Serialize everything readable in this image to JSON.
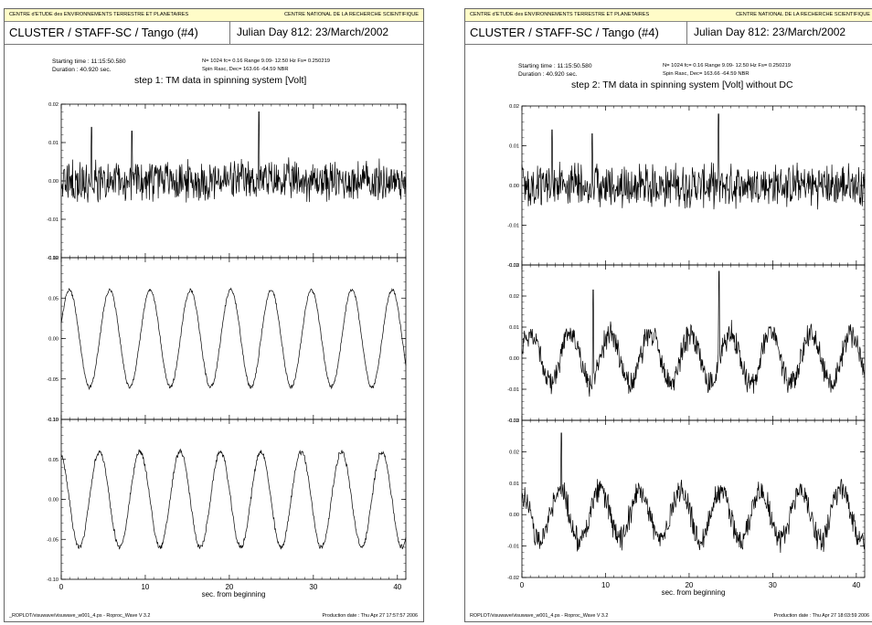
{
  "pages": [
    {
      "header_left": "CENTRE d'ETUDE des ENVIRONNEMENTS TERRESTRE ET PLANETAIRES",
      "header_right": "CENTRE NATIONAL DE LA RECHERCHE SCIENTIFIQUE",
      "title": "CLUSTER / STAFF-SC / Tango  (#4)",
      "julian": "Julian Day  812:  23/March/2002",
      "start_time": "Starting time :  11:15:50.580",
      "duration": "Duration :    40.920 sec.",
      "params1": "N=   1024  fc=  0.16  Range    9.09-   12.50 Hz  Fs= 0.250219",
      "params2": "Spin Rasc, Dec= 163.66  -64.59  NBR",
      "plot_title": "step 1: TM data in spinning system [Volt]",
      "xlabel": "sec. from beginning",
      "footer_left": "_ROPLOT/visuwave/visuwave_w001_4.ps   - Roproc_Wave V 3.2",
      "footer_right": "Production date : Thu Apr 27 17:57:57 2006"
    },
    {
      "header_left": "CENTRE d'ETUDE des ENVIRONNEMENTS TERRESTRE ET PLANETAIRES",
      "header_right": "CENTRE NATIONAL DE LA RECHERCHE SCIENTIFIQUE",
      "title": "CLUSTER / STAFF-SC / Tango  (#4)",
      "julian": "Julian Day  812:  23/March/2002",
      "start_time": "Starting time :  11:15:50.580",
      "duration": "Duration :    40.920 sec.",
      "params1": "N=   1024  fc=  0.16  Range    9.09-   12.50 Hz  Fs= 0.250219",
      "params2": "Spin Rasc, Dec= 163.66  -64.59  NBR",
      "plot_title": "step 2: TM data in spinning system [Volt] without DC",
      "xlabel": "sec. from beginning",
      "footer_left": "ROPLOT/visuwave/visuwave_w001_4.ps   - Roproc_Wave V 3.2",
      "footer_right": "Production date : Thu Apr 27 18:03:59 2006"
    }
  ],
  "chart_data": [
    {
      "type": "line",
      "panel": "step 1, component 1",
      "xlim": [
        0,
        41
      ],
      "x_ticks": [
        "0",
        "10",
        "20",
        "30",
        "40"
      ],
      "ylim": [
        -0.02,
        0.02
      ],
      "y_ticks": [
        "0.02",
        "0.01",
        "0.00",
        "-0.01",
        "-0.02"
      ],
      "wave": {
        "amp": 0.0,
        "period": 0,
        "noise": 0.0045
      },
      "spikes": [
        [
          3.6,
          0.014
        ],
        [
          8.4,
          0.013
        ],
        [
          23.5,
          0.018
        ],
        [
          37.4,
          -0.004
        ]
      ],
      "xlabel": "",
      "ylabel": ""
    },
    {
      "type": "line",
      "panel": "step 1, component 2",
      "xlim": [
        0,
        41
      ],
      "x_ticks": [
        "0",
        "10",
        "20",
        "30",
        "40"
      ],
      "ylim": [
        -0.1,
        0.1
      ],
      "y_ticks": [
        "0.10",
        "0.05",
        "0.00",
        "-0.05",
        "-0.10"
      ],
      "wave": {
        "amp": 0.06,
        "period": 4.8,
        "phase": 0.3,
        "noise": 0.002
      },
      "spikes": [],
      "xlabel": "",
      "ylabel": ""
    },
    {
      "type": "line",
      "panel": "step 1, component 3",
      "xlim": [
        0,
        41
      ],
      "x_ticks": [
        "0",
        "10",
        "20",
        "30",
        "40"
      ],
      "ylim": [
        -0.1,
        0.1
      ],
      "y_ticks": [
        "0.10",
        "0.05",
        "0.00",
        "-0.05",
        "-0.10"
      ],
      "wave": {
        "amp": 0.06,
        "period": 4.8,
        "phase": 1.9,
        "noise": 0.003
      },
      "spikes": [],
      "xlabel": "sec. from beginning",
      "ylabel": ""
    },
    {
      "type": "line",
      "panel": "step 2, component 1",
      "xlim": [
        0,
        41
      ],
      "x_ticks": [
        "0",
        "10",
        "20",
        "30",
        "40"
      ],
      "ylim": [
        -0.02,
        0.02
      ],
      "y_ticks": [
        "0.02",
        "0.01",
        "0.00",
        "-0.01",
        "-0.02"
      ],
      "wave": {
        "amp": 0.0,
        "period": 0,
        "noise": 0.0045
      },
      "spikes": [
        [
          3.6,
          0.014
        ],
        [
          8.4,
          0.013
        ],
        [
          23.5,
          0.018
        ],
        [
          37.4,
          -0.004
        ]
      ],
      "xlabel": "",
      "ylabel": ""
    },
    {
      "type": "line",
      "panel": "step 2, component 2",
      "xlim": [
        0,
        41
      ],
      "x_ticks": [
        "0",
        "10",
        "20",
        "30",
        "40"
      ],
      "ylim": [
        -0.02,
        0.03
      ],
      "y_ticks": [
        "0.03",
        "0.02",
        "0.01",
        "0.00",
        "-0.01",
        "-0.02"
      ],
      "wave": {
        "amp": 0.008,
        "period": 4.8,
        "phase": 0.3,
        "noise": 0.0035
      },
      "spikes": [
        [
          8.5,
          0.022
        ],
        [
          23.6,
          0.028
        ]
      ],
      "xlabel": "",
      "ylabel": ""
    },
    {
      "type": "line",
      "panel": "step 2, component 3",
      "xlim": [
        0,
        41
      ],
      "x_ticks": [
        "0",
        "10",
        "20",
        "30",
        "40"
      ],
      "ylim": [
        -0.02,
        0.03
      ],
      "y_ticks": [
        "0.03",
        "0.02",
        "0.01",
        "0.00",
        "-0.01",
        "-0.02"
      ],
      "wave": {
        "amp": 0.008,
        "period": 4.8,
        "phase": 1.9,
        "noise": 0.0035
      },
      "spikes": [
        [
          4.7,
          0.026
        ]
      ],
      "xlabel": "sec. from beginning",
      "ylabel": ""
    }
  ]
}
